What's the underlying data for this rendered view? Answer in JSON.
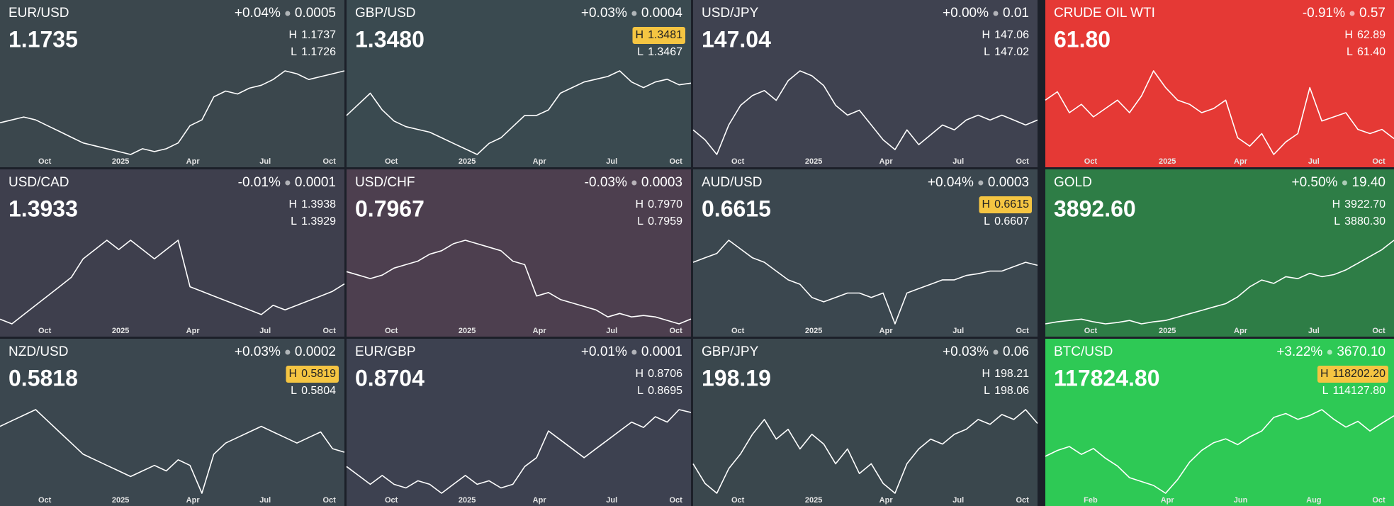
{
  "labels": {
    "high": "H",
    "low": "L"
  },
  "tiles": [
    {
      "symbol": "EUR/USD",
      "change_pct": "+0.04%",
      "change": "0.0005",
      "price": "1.1735",
      "high": "1.1737",
      "low": "1.1726",
      "high_highlight": false,
      "color": "#3b474d",
      "x_labels": [
        "Oct",
        "2025",
        "Apr",
        "Jul",
        "Oct"
      ],
      "series": [
        1.085,
        1.09,
        1.095,
        1.09,
        1.08,
        1.07,
        1.06,
        1.05,
        1.045,
        1.04,
        1.035,
        1.03,
        1.04,
        1.035,
        1.04,
        1.05,
        1.08,
        1.09,
        1.13,
        1.14,
        1.135,
        1.145,
        1.15,
        1.16,
        1.175,
        1.17,
        1.16,
        1.165,
        1.17,
        1.175
      ]
    },
    {
      "symbol": "GBP/USD",
      "change_pct": "+0.03%",
      "change": "0.0004",
      "price": "1.3480",
      "high": "1.3481",
      "low": "1.3467",
      "high_highlight": true,
      "color": "#3a4a50",
      "x_labels": [
        "Oct",
        "2025",
        "Apr",
        "Jul",
        "Oct"
      ],
      "series": [
        1.29,
        1.31,
        1.33,
        1.3,
        1.28,
        1.27,
        1.265,
        1.26,
        1.25,
        1.24,
        1.23,
        1.22,
        1.24,
        1.25,
        1.27,
        1.29,
        1.29,
        1.3,
        1.33,
        1.34,
        1.35,
        1.355,
        1.36,
        1.37,
        1.35,
        1.34,
        1.35,
        1.355,
        1.345,
        1.348
      ]
    },
    {
      "symbol": "USD/JPY",
      "change_pct": "+0.00%",
      "change": "0.01",
      "price": "147.04",
      "high": "147.06",
      "low": "147.02",
      "high_highlight": false,
      "color": "#3f4250",
      "x_labels": [
        "Oct",
        "2025",
        "Apr",
        "Jul",
        "Oct"
      ],
      "series": [
        145,
        143,
        140,
        146,
        150,
        152,
        153,
        151,
        155,
        157,
        156,
        154,
        150,
        148,
        149,
        146,
        143,
        141,
        145,
        142,
        144,
        146,
        145,
        147,
        148,
        147,
        148,
        147,
        146,
        147
      ]
    },
    {
      "symbol": "CRUDE OIL WTI",
      "change_pct": "-0.91%",
      "change": "0.57",
      "price": "61.80",
      "high": "62.89",
      "low": "61.40",
      "high_highlight": false,
      "color": "#e53935",
      "x_labels": [
        "Oct",
        "2025",
        "Apr",
        "Jul",
        "Oct"
      ],
      "series": [
        71,
        73,
        68,
        70,
        67,
        69,
        71,
        68,
        72,
        78,
        74,
        71,
        70,
        68,
        69,
        71,
        62,
        60,
        63,
        58,
        61,
        63,
        74,
        66,
        67,
        68,
        64,
        63,
        64,
        61.8
      ]
    },
    {
      "symbol": "USD/CAD",
      "change_pct": "-0.01%",
      "change": "0.0001",
      "price": "1.3933",
      "high": "1.3938",
      "low": "1.3929",
      "high_highlight": false,
      "color": "#3e3f4d",
      "x_labels": [
        "Oct",
        "2025",
        "Apr",
        "Jul",
        "Oct"
      ],
      "series": [
        1.355,
        1.35,
        1.36,
        1.37,
        1.38,
        1.39,
        1.4,
        1.42,
        1.43,
        1.44,
        1.43,
        1.44,
        1.43,
        1.42,
        1.43,
        1.44,
        1.39,
        1.385,
        1.38,
        1.375,
        1.37,
        1.365,
        1.36,
        1.37,
        1.365,
        1.37,
        1.375,
        1.38,
        1.385,
        1.393
      ]
    },
    {
      "symbol": "USD/CHF",
      "change_pct": "-0.03%",
      "change": "0.0003",
      "price": "0.7967",
      "high": "0.7970",
      "low": "0.7959",
      "high_highlight": false,
      "color": "#4d3f4f",
      "x_labels": [
        "Oct",
        "2025",
        "Apr",
        "Jul",
        "Oct"
      ],
      "series": [
        0.865,
        0.86,
        0.855,
        0.86,
        0.87,
        0.875,
        0.88,
        0.89,
        0.895,
        0.905,
        0.91,
        0.905,
        0.9,
        0.895,
        0.88,
        0.875,
        0.83,
        0.835,
        0.825,
        0.82,
        0.815,
        0.81,
        0.8,
        0.805,
        0.8,
        0.802,
        0.8,
        0.795,
        0.79,
        0.797
      ]
    },
    {
      "symbol": "AUD/USD",
      "change_pct": "+0.04%",
      "change": "0.0003",
      "price": "0.6615",
      "high": "0.6615",
      "low": "0.6607",
      "high_highlight": true,
      "color": "#3b474f",
      "x_labels": [
        "Oct",
        "2025",
        "Apr",
        "Jul",
        "Oct"
      ],
      "series": [
        0.665,
        0.67,
        0.675,
        0.69,
        0.68,
        0.67,
        0.665,
        0.655,
        0.645,
        0.64,
        0.625,
        0.62,
        0.625,
        0.63,
        0.63,
        0.625,
        0.63,
        0.595,
        0.63,
        0.635,
        0.64,
        0.645,
        0.645,
        0.65,
        0.652,
        0.655,
        0.655,
        0.66,
        0.665,
        0.6615
      ]
    },
    {
      "symbol": "GOLD",
      "change_pct": "+0.50%",
      "change": "19.40",
      "price": "3892.60",
      "high": "3922.70",
      "low": "3880.30",
      "high_highlight": false,
      "color": "#2e7d46",
      "x_labels": [
        "Oct",
        "2025",
        "Apr",
        "Jul",
        "Oct"
      ],
      "series": [
        2650,
        2680,
        2700,
        2720,
        2680,
        2650,
        2670,
        2700,
        2650,
        2680,
        2700,
        2750,
        2800,
        2850,
        2900,
        2950,
        3050,
        3200,
        3300,
        3250,
        3350,
        3320,
        3400,
        3350,
        3380,
        3450,
        3550,
        3650,
        3750,
        3890
      ]
    },
    {
      "symbol": "NZD/USD",
      "change_pct": "+0.03%",
      "change": "0.0002",
      "price": "0.5818",
      "high": "0.5819",
      "low": "0.5804",
      "high_highlight": true,
      "color": "#3b474f",
      "x_labels": [
        "Oct",
        "2025",
        "Apr",
        "Jul",
        "Oct"
      ],
      "series": [
        0.605,
        0.61,
        0.615,
        0.62,
        0.61,
        0.6,
        0.59,
        0.58,
        0.575,
        0.57,
        0.565,
        0.56,
        0.565,
        0.57,
        0.565,
        0.575,
        0.57,
        0.545,
        0.58,
        0.59,
        0.595,
        0.6,
        0.605,
        0.6,
        0.595,
        0.59,
        0.595,
        0.6,
        0.585,
        0.5818
      ]
    },
    {
      "symbol": "EUR/GBP",
      "change_pct": "+0.01%",
      "change": "0.0001",
      "price": "0.8704",
      "high": "0.8706",
      "low": "0.8695",
      "high_highlight": false,
      "color": "#3d4150",
      "x_labels": [
        "Oct",
        "2025",
        "Apr",
        "Jul",
        "Oct"
      ],
      "series": [
        0.84,
        0.835,
        0.83,
        0.835,
        0.83,
        0.828,
        0.832,
        0.83,
        0.825,
        0.83,
        0.835,
        0.83,
        0.832,
        0.828,
        0.83,
        0.84,
        0.845,
        0.86,
        0.855,
        0.85,
        0.845,
        0.85,
        0.855,
        0.86,
        0.865,
        0.862,
        0.868,
        0.865,
        0.872,
        0.8704
      ]
    },
    {
      "symbol": "GBP/JPY",
      "change_pct": "+0.03%",
      "change": "0.06",
      "price": "198.19",
      "high": "198.21",
      "low": "198.06",
      "high_highlight": false,
      "color": "#3a474d",
      "x_labels": [
        "Oct",
        "2025",
        "Apr",
        "Jul",
        "Oct"
      ],
      "series": [
        190,
        186,
        184,
        189,
        192,
        196,
        199,
        195,
        197,
        193,
        196,
        194,
        190,
        193,
        188,
        190,
        186,
        184,
        190,
        193,
        195,
        194,
        196,
        197,
        199,
        198,
        200,
        199,
        201,
        198.19
      ]
    },
    {
      "symbol": "BTC/USD",
      "change_pct": "+3.22%",
      "change": "3670.10",
      "price": "117824.80",
      "high": "118202.20",
      "low": "114127.80",
      "high_highlight": true,
      "color": "#2ec955",
      "x_labels": [
        "Feb",
        "Apr",
        "Jun",
        "Aug",
        "Oct"
      ],
      "series": [
        97000,
        100000,
        102000,
        98000,
        101000,
        96000,
        92000,
        86000,
        84000,
        82000,
        78000,
        85000,
        94000,
        100000,
        104000,
        106000,
        103000,
        107000,
        110000,
        117000,
        119000,
        116000,
        118000,
        121000,
        116000,
        112000,
        115000,
        110000,
        114000,
        117824.8
      ]
    }
  ]
}
